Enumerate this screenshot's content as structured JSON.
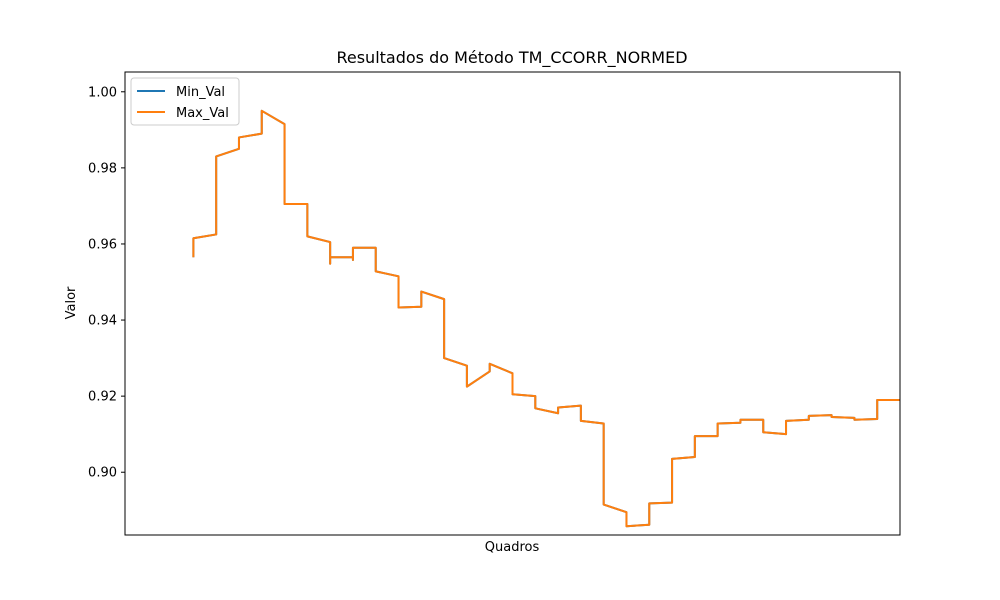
{
  "chart_data": {
    "type": "line",
    "title": "Resultados do Método TM_CCORR_NORMED",
    "xlabel": "Quadros",
    "ylabel": "Valor",
    "ylim": [
      0.8835,
      1.0052
    ],
    "yticks": [
      0.9,
      0.92,
      0.94,
      0.96,
      0.98,
      1.0
    ],
    "ytick_labels": [
      "0.90",
      "0.92",
      "0.94",
      "0.96",
      "0.98",
      "1.00"
    ],
    "xlim": [
      -3,
      31
    ],
    "xticks_visible": false,
    "grid": false,
    "legend_position": "top-left",
    "colors": {
      "Min_Val": "#1f77b4",
      "Max_Val": "#ff7f0e"
    },
    "series": [
      {
        "name": "Min_Val",
        "color": "#1f77b4",
        "x": [
          0.0,
          0.0,
          1.0,
          1.0,
          2.0,
          2.0,
          3.0,
          3.0,
          4.0,
          4.0,
          5.0,
          5.0,
          6.0,
          6.0,
          6.0,
          7.0,
          7.0,
          7.0,
          8.0,
          8.0,
          9.0,
          9.0,
          10.0,
          10.0,
          11.0,
          11.0,
          12.0,
          12.0,
          13.0,
          13.0,
          14.0,
          14.0,
          15.0,
          15.0,
          16.0,
          16.0,
          17.0,
          17.0,
          18.0,
          18.0,
          19.0,
          19.0,
          20.0,
          20.0,
          21.0,
          21.0,
          22.0,
          22.0,
          23.0,
          23.0,
          24.0,
          24.0,
          25.0,
          25.0,
          26.0,
          26.0,
          27.0,
          27.0,
          28.0,
          28.0,
          29.0,
          29.0,
          30.0,
          30.0,
          31.0
        ],
        "y": [
          0.9565,
          0.9615,
          0.9625,
          0.983,
          0.985,
          0.988,
          0.989,
          0.995,
          0.9915,
          0.9705,
          0.9705,
          0.962,
          0.9605,
          0.9548,
          0.9565,
          0.9565,
          0.9558,
          0.959,
          0.959,
          0.9528,
          0.9515,
          0.9433,
          0.9435,
          0.9475,
          0.9455,
          0.93,
          0.928,
          0.9225,
          0.9265,
          0.9285,
          0.926,
          0.9205,
          0.92,
          0.9168,
          0.9155,
          0.917,
          0.9175,
          0.9135,
          0.9128,
          0.8915,
          0.8895,
          0.8858,
          0.8862,
          0.8918,
          0.892,
          0.9035,
          0.904,
          0.9095,
          0.9095,
          0.9128,
          0.913,
          0.9138,
          0.9138,
          0.9105,
          0.91,
          0.9135,
          0.9138,
          0.9148,
          0.915,
          0.9145,
          0.9143,
          0.9138,
          0.914,
          0.919,
          0.919
        ]
      },
      {
        "name": "Max_Val",
        "color": "#ff7f0e",
        "x": [
          0.0,
          0.0,
          1.0,
          1.0,
          2.0,
          2.0,
          3.0,
          3.0,
          4.0,
          4.0,
          5.0,
          5.0,
          6.0,
          6.0,
          6.0,
          7.0,
          7.0,
          7.0,
          8.0,
          8.0,
          9.0,
          9.0,
          10.0,
          10.0,
          11.0,
          11.0,
          12.0,
          12.0,
          13.0,
          13.0,
          14.0,
          14.0,
          15.0,
          15.0,
          16.0,
          16.0,
          17.0,
          17.0,
          18.0,
          18.0,
          19.0,
          19.0,
          20.0,
          20.0,
          21.0,
          21.0,
          22.0,
          22.0,
          23.0,
          23.0,
          24.0,
          24.0,
          25.0,
          25.0,
          26.0,
          26.0,
          27.0,
          27.0,
          28.0,
          28.0,
          29.0,
          29.0,
          30.0,
          30.0,
          31.0
        ],
        "y": [
          0.9565,
          0.9615,
          0.9625,
          0.983,
          0.985,
          0.988,
          0.989,
          0.995,
          0.9915,
          0.9705,
          0.9705,
          0.962,
          0.9605,
          0.9548,
          0.9565,
          0.9565,
          0.9558,
          0.959,
          0.959,
          0.9528,
          0.9515,
          0.9433,
          0.9435,
          0.9475,
          0.9455,
          0.93,
          0.928,
          0.9225,
          0.9265,
          0.9285,
          0.926,
          0.9205,
          0.92,
          0.9168,
          0.9155,
          0.917,
          0.9175,
          0.9135,
          0.9128,
          0.8915,
          0.8895,
          0.8858,
          0.8862,
          0.8918,
          0.892,
          0.9035,
          0.904,
          0.9095,
          0.9095,
          0.9128,
          0.913,
          0.9138,
          0.9138,
          0.9105,
          0.91,
          0.9135,
          0.9138,
          0.9148,
          0.915,
          0.9145,
          0.9143,
          0.9138,
          0.914,
          0.919,
          0.919
        ]
      }
    ]
  }
}
